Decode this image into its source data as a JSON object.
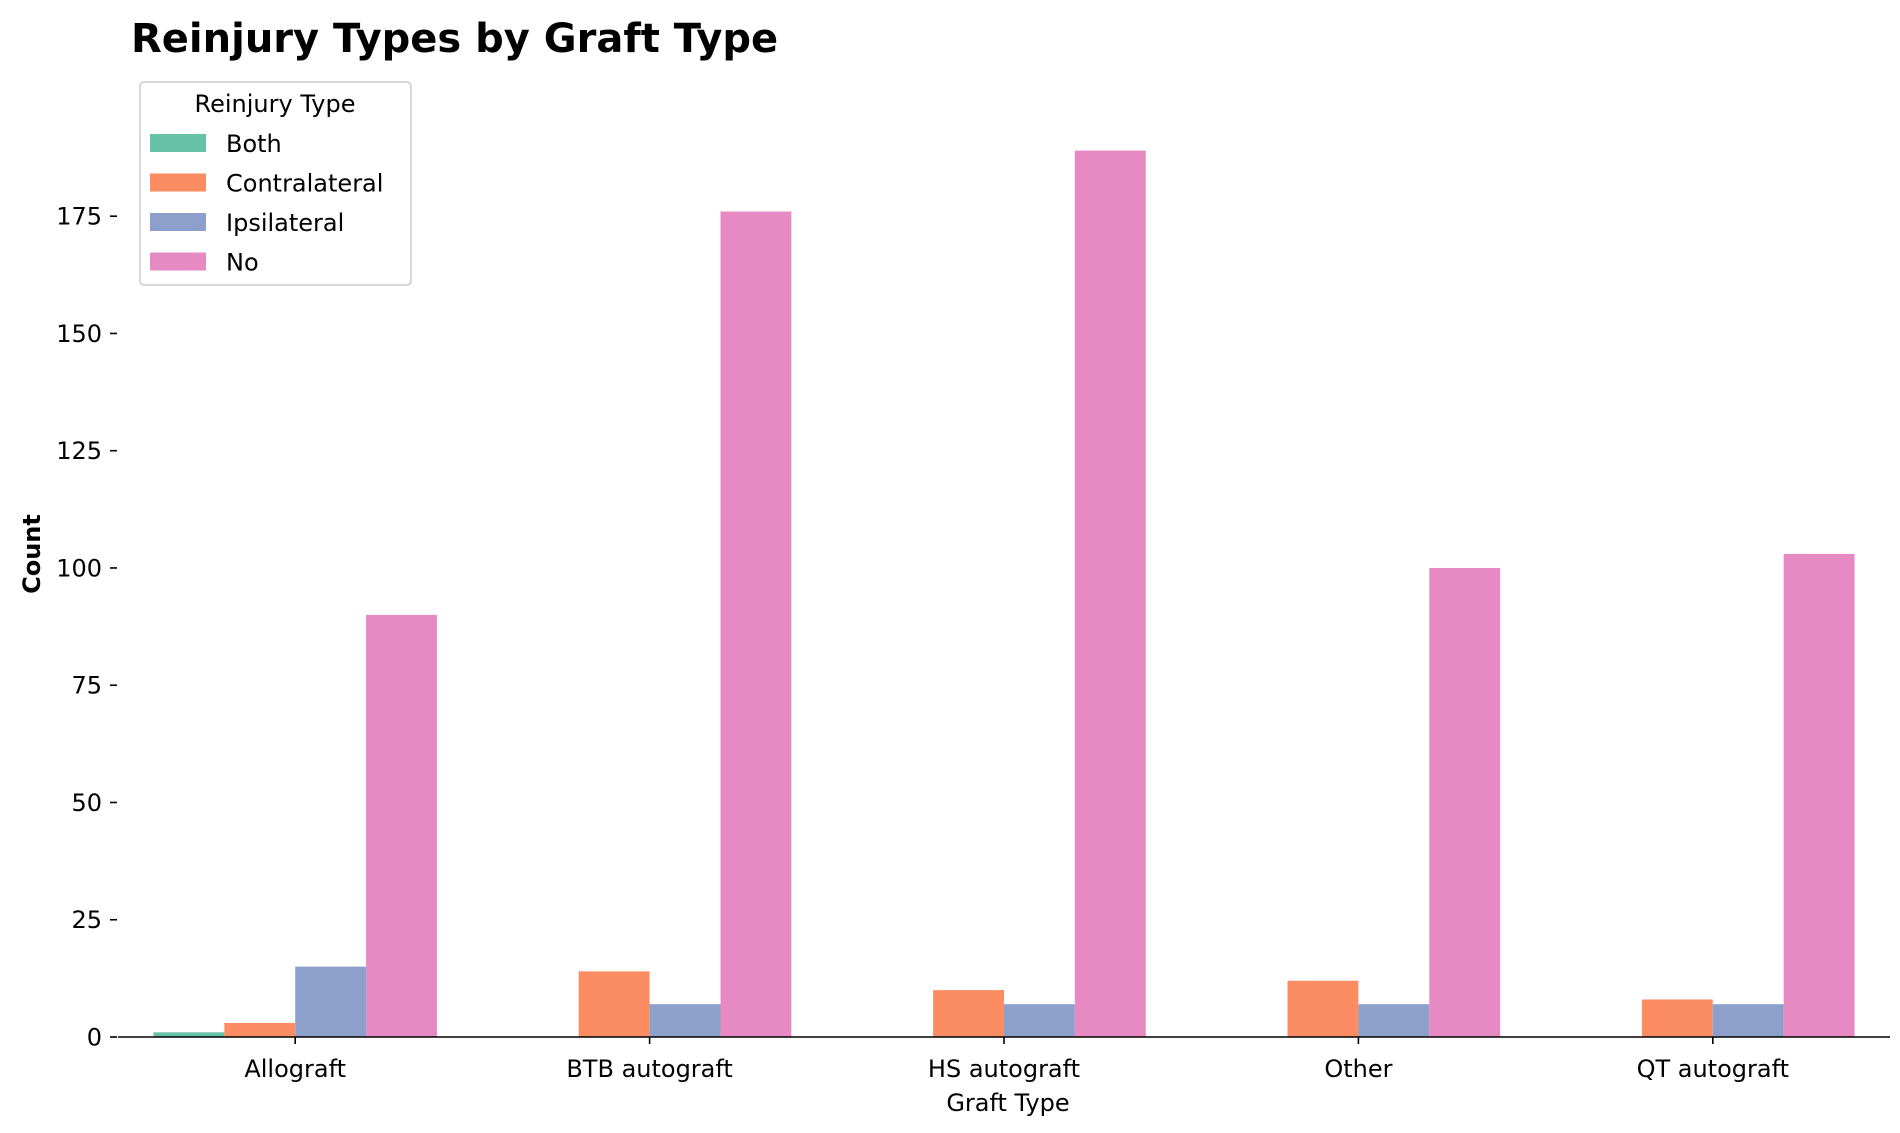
{
  "chart_data": {
    "type": "bar",
    "title": "Reinjury Types by Graft Type",
    "xlabel": "Graft Type",
    "ylabel": "Count",
    "ylim": [
      0,
      197
    ],
    "yticks": [
      0,
      25,
      50,
      75,
      100,
      125,
      150,
      175
    ],
    "categories": [
      "Allograft",
      "BTB autograft",
      "HS autograft",
      "Other",
      "QT autograft"
    ],
    "legend": {
      "title": "Reinjury Type",
      "position": "top-left"
    },
    "grid": false,
    "series": [
      {
        "name": "Both",
        "color": "#66c2a5",
        "values": [
          1,
          0,
          0,
          0,
          0
        ]
      },
      {
        "name": "Contralateral",
        "color": "#fc8d62",
        "values": [
          3,
          14,
          10,
          12,
          8
        ]
      },
      {
        "name": "Ipsilateral",
        "color": "#8da0cb",
        "values": [
          15,
          7,
          7,
          7,
          7
        ]
      },
      {
        "name": "No",
        "color": "#e78ac3",
        "values": [
          90,
          176,
          189,
          100,
          103
        ]
      }
    ]
  }
}
